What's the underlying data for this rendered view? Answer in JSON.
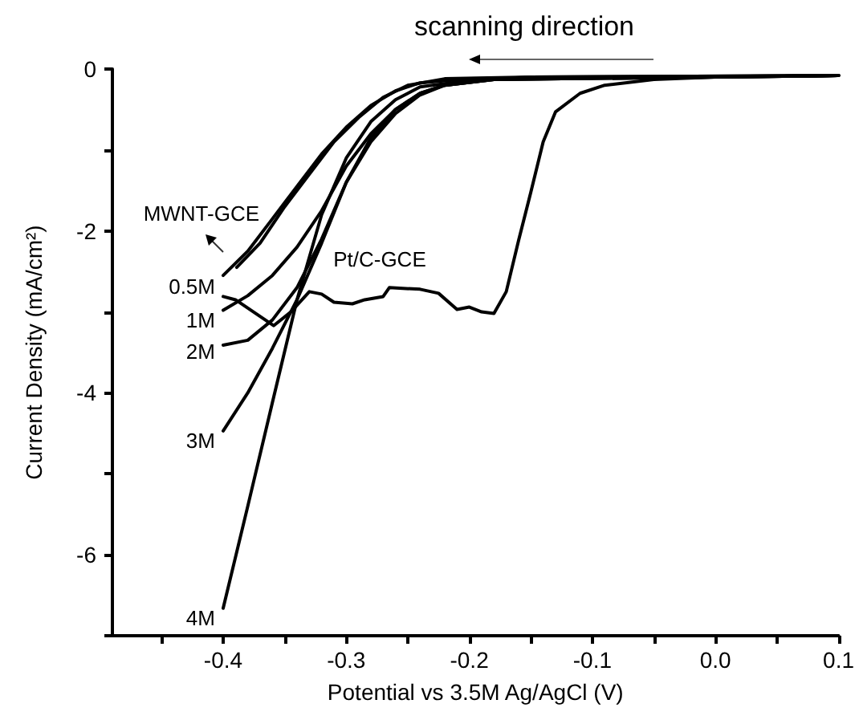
{
  "chart_data": {
    "type": "line",
    "xlabel": "Potential vs 3.5M Ag/AgCl (V)",
    "ylabel": "Current Density (mA/cm²)",
    "annotations": [
      "scanning direction"
    ],
    "xlim": [
      -0.49,
      0.1
    ],
    "xticks": [
      {
        "value": -0.45,
        "label": null
      },
      -0.4,
      {
        "value": -0.35,
        "label": null
      },
      -0.3,
      {
        "value": -0.25,
        "label": null
      },
      -0.2,
      {
        "value": -0.15,
        "label": null
      },
      -0.1,
      {
        "value": -0.05,
        "label": null
      },
      {
        "value": 0,
        "label": "0.0"
      },
      {
        "value": 0.05,
        "label": null
      },
      0.1
    ],
    "ylim": [
      -7,
      0
    ],
    "yticks": [
      {
        "value": -7,
        "label": null
      },
      -6,
      {
        "value": -5,
        "label": null
      },
      -4,
      {
        "value": -3,
        "label": null
      },
      -2,
      {
        "value": -1,
        "label": null
      },
      0
    ],
    "grid": false,
    "legend": false,
    "line_style": "solid",
    "series": [
      {
        "name": "MWNT-GCE",
        "color": "#000000",
        "x": [
          -0.389,
          -0.37,
          -0.35,
          -0.33,
          -0.31,
          -0.29,
          -0.27,
          -0.25,
          -0.22,
          -0.15,
          0.1
        ],
        "values": [
          -2.45,
          -2.15,
          -1.7,
          -1.3,
          -0.9,
          -0.6,
          -0.35,
          -0.2,
          -0.12,
          -0.1,
          -0.08
        ]
      },
      {
        "name": "0.5M",
        "color": "#000000",
        "x": [
          -0.4,
          -0.38,
          -0.36,
          -0.34,
          -0.32,
          -0.3,
          -0.28,
          -0.26,
          -0.24,
          -0.2,
          0.1
        ],
        "values": [
          -2.55,
          -2.25,
          -1.85,
          -1.45,
          -1.05,
          -0.72,
          -0.45,
          -0.27,
          -0.17,
          -0.12,
          -0.08
        ]
      },
      {
        "name": "1M",
        "color": "#000000",
        "x": [
          -0.4,
          -0.38,
          -0.36,
          -0.34,
          -0.32,
          -0.3,
          -0.28,
          -0.26,
          -0.24,
          -0.22,
          -0.18,
          0.1
        ],
        "values": [
          -2.98,
          -2.8,
          -2.55,
          -2.2,
          -1.75,
          -1.2,
          -0.8,
          -0.5,
          -0.3,
          -0.2,
          -0.13,
          -0.08
        ]
      },
      {
        "name": "2M",
        "color": "#000000",
        "x": [
          -0.4,
          -0.38,
          -0.36,
          -0.34,
          -0.32,
          -0.3,
          -0.28,
          -0.26,
          -0.24,
          -0.22,
          -0.18,
          0.1
        ],
        "values": [
          -3.41,
          -3.35,
          -3.1,
          -2.7,
          -2.1,
          -1.4,
          -0.9,
          -0.55,
          -0.32,
          -0.2,
          -0.13,
          -0.08
        ]
      },
      {
        "name": "3M",
        "color": "#000000",
        "x": [
          -0.4,
          -0.38,
          -0.36,
          -0.34,
          -0.32,
          -0.3,
          -0.28,
          -0.26,
          -0.24,
          -0.22,
          -0.18,
          0.1
        ],
        "values": [
          -4.47,
          -4.0,
          -3.45,
          -2.85,
          -2.15,
          -1.4,
          -0.85,
          -0.5,
          -0.3,
          -0.2,
          -0.13,
          -0.08
        ]
      },
      {
        "name": "4M",
        "color": "#000000",
        "x": [
          -0.4,
          -0.38,
          -0.36,
          -0.34,
          -0.32,
          -0.3,
          -0.28,
          -0.26,
          -0.24,
          -0.2,
          -0.15,
          0.1
        ],
        "values": [
          -6.66,
          -5.4,
          -4.12,
          -2.85,
          -1.8,
          -1.1,
          -0.65,
          -0.38,
          -0.22,
          -0.14,
          -0.1,
          -0.08
        ]
      },
      {
        "name": "Pt/C-GCE",
        "color": "#000000",
        "x": [
          -0.4,
          -0.39,
          -0.359,
          -0.345,
          -0.33,
          -0.32,
          -0.31,
          -0.295,
          -0.285,
          -0.27,
          -0.265,
          -0.24,
          -0.225,
          -0.21,
          -0.2,
          -0.19,
          -0.18,
          -0.17,
          -0.16,
          -0.15,
          -0.14,
          -0.13,
          -0.11,
          -0.09,
          -0.05,
          0.0,
          0.1
        ],
        "values": [
          -2.81,
          -2.85,
          -3.17,
          -3.0,
          -2.75,
          -2.78,
          -2.88,
          -2.9,
          -2.85,
          -2.81,
          -2.7,
          -2.72,
          -2.77,
          -2.97,
          -2.94,
          -3.0,
          -3.02,
          -2.75,
          -2.12,
          -1.52,
          -0.9,
          -0.53,
          -0.3,
          -0.2,
          -0.13,
          -0.1,
          -0.08
        ]
      }
    ]
  }
}
